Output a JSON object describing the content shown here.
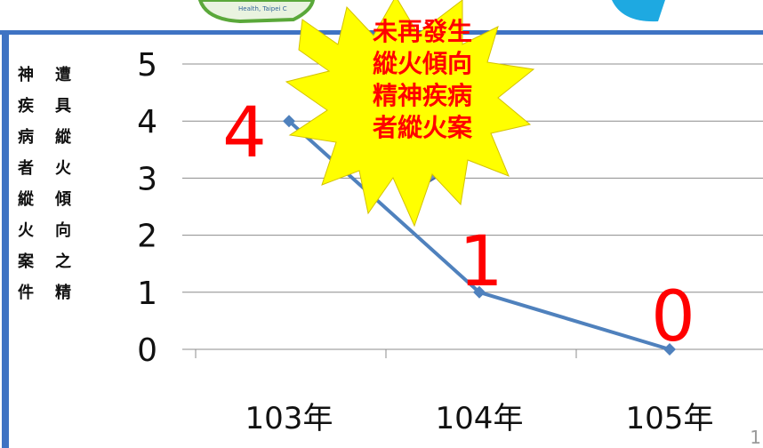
{
  "chart_data": {
    "type": "line",
    "categories": [
      "103年",
      "104年",
      "105年"
    ],
    "series": [
      {
        "values": [
          4,
          1,
          0
        ],
        "color": "#4f81bd"
      }
    ],
    "ylim": [
      0,
      5
    ],
    "y_ticks": [
      "0",
      "1",
      "2",
      "3",
      "4",
      "5"
    ],
    "data_labels": [
      "4",
      "1",
      "0"
    ],
    "data_label_color": "#ff0000",
    "ylabel_columns": [
      "神疾病者縱火案件",
      "遭具縱火傾向之精"
    ],
    "grid": true
  },
  "callout": {
    "lines": [
      "未再發生",
      "縱火傾向",
      "精神疾病",
      "者縱火案"
    ],
    "shape": "explosion-star",
    "fill": "#ffff00",
    "text_color": "#ff0000"
  },
  "logo_text": "Health, Taipei C",
  "slide_number": "1",
  "colors": {
    "frame_border": "#3f73c3",
    "top_band": "#3f73c3",
    "logo_green": "#5aa83a",
    "logo_blue": "#1ea9e1",
    "pointer": "#6f8fc4"
  }
}
